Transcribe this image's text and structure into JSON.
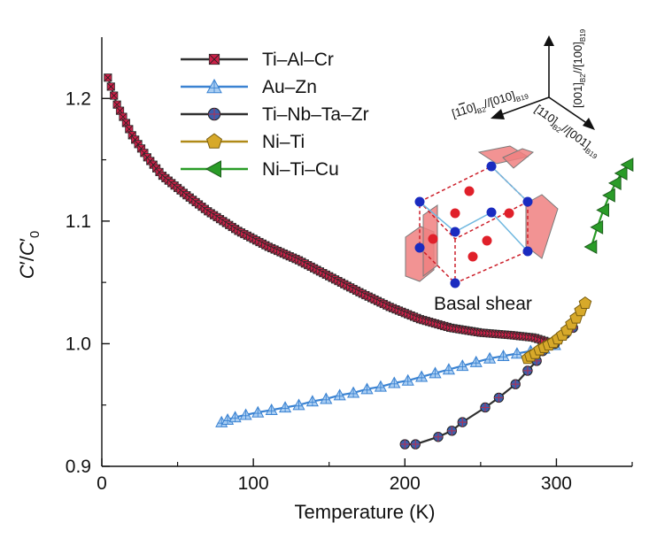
{
  "chart_data": {
    "type": "line",
    "title": "",
    "xlabel": "Temperature (K)",
    "ylabel_base": "C",
    "ylabel_sub": "0",
    "xlim": [
      0,
      350
    ],
    "ylim": [
      0.9,
      1.25
    ],
    "x_ticks": [
      "0",
      "100",
      "200",
      "300"
    ],
    "x_tick_values": [
      0,
      100,
      200,
      300
    ],
    "y_ticks": [
      "0.9",
      "1.0",
      "1.1",
      "1.2"
    ],
    "y_tick_values": [
      0.9,
      1.0,
      1.1,
      1.2
    ],
    "legend_position": "top-left",
    "series": [
      {
        "name": "Ti–Al–Cr",
        "color": "#cc1f47",
        "line_color": "#303030",
        "marker": "crossed-square",
        "anchors": [
          [
            4,
            1.217
          ],
          [
            10,
            1.195
          ],
          [
            20,
            1.17
          ],
          [
            30,
            1.152
          ],
          [
            40,
            1.137
          ],
          [
            55,
            1.122
          ],
          [
            70,
            1.108
          ],
          [
            90,
            1.092
          ],
          [
            110,
            1.079
          ],
          [
            130,
            1.068
          ],
          [
            150,
            1.055
          ],
          [
            170,
            1.042
          ],
          [
            190,
            1.03
          ],
          [
            210,
            1.02
          ],
          [
            230,
            1.013
          ],
          [
            250,
            1.009
          ],
          [
            270,
            1.007
          ],
          [
            285,
            1.005
          ],
          [
            298,
            1.0
          ]
        ],
        "step": 2
      },
      {
        "name": "Au–Zn",
        "color": "#3b83d2",
        "line_color": "#3b83d2",
        "marker": "triangle-up",
        "x": [
          79,
          83,
          88,
          95,
          103,
          112,
          121,
          130,
          139,
          148,
          157,
          166,
          175,
          184,
          193,
          202,
          211,
          220,
          229,
          238,
          247,
          256,
          265,
          274,
          283,
          292,
          299
        ],
        "y": [
          0.936,
          0.938,
          0.94,
          0.942,
          0.944,
          0.946,
          0.948,
          0.95,
          0.953,
          0.955,
          0.958,
          0.96,
          0.963,
          0.965,
          0.968,
          0.97,
          0.973,
          0.976,
          0.979,
          0.982,
          0.985,
          0.988,
          0.99,
          0.992,
          0.994,
          0.996,
          0.999
        ]
      },
      {
        "name": "Ti–Nb–Ta–Zr",
        "color": "#3c5fad",
        "line_color": "#303030",
        "marker": "crossed-circle",
        "x": [
          200,
          207,
          222,
          231,
          238,
          253,
          262,
          273,
          281,
          287,
          291,
          299,
          306,
          311
        ],
        "y": [
          0.918,
          0.918,
          0.924,
          0.929,
          0.936,
          0.948,
          0.956,
          0.967,
          0.978,
          0.986,
          0.994,
          1.0,
          1.008,
          1.013
        ]
      },
      {
        "name": "Ni–Ti",
        "color": "#d7a92a",
        "line_color": "#b08a18",
        "marker": "pentagon",
        "x": [
          281,
          283,
          286,
          289,
          292,
          295,
          298,
          301,
          304,
          307,
          310,
          313,
          316,
          319
        ],
        "y": [
          0.988,
          0.99,
          0.992,
          0.995,
          0.997,
          0.999,
          1.001,
          1.004,
          1.007,
          1.011,
          1.016,
          1.021,
          1.027,
          1.033
        ]
      },
      {
        "name": "Ni–Ti–Cu",
        "color": "#2a9c28",
        "line_color": "#2a9c28",
        "marker": "triangle-left",
        "x": [
          323,
          327,
          331,
          335,
          339,
          343,
          347
        ],
        "y": [
          1.079,
          1.095,
          1.109,
          1.121,
          1.131,
          1.139,
          1.146
        ]
      }
    ],
    "annotation": "Basal shear",
    "direction_labels": {
      "left": {
        "a": "[1",
        "a_bar": "1",
        "a_end": "0]",
        "sub1": "B2",
        "b": "//[010]",
        "sub2": "B19"
      },
      "down": {
        "a": "[110]",
        "sub1": "B2",
        "b": "//[001]",
        "sub2": "B19"
      },
      "up": {
        "a": "[001]",
        "sub1": "B2",
        "b": "//[100]",
        "sub2": "B19"
      }
    }
  }
}
